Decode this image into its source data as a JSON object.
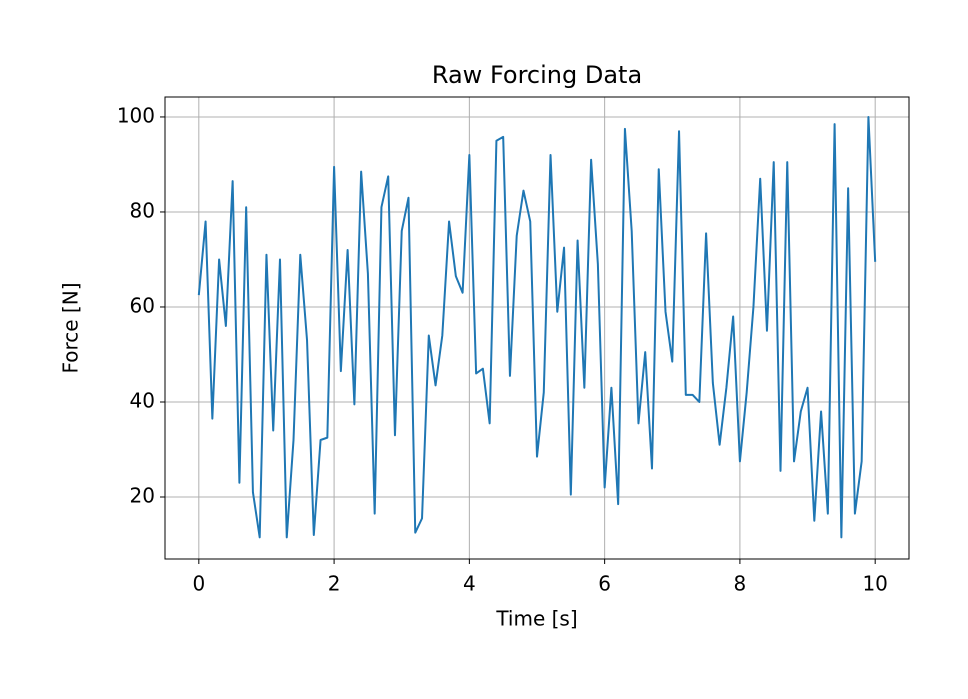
{
  "chart_data": {
    "type": "line",
    "title": "Raw Forcing Data",
    "xlabel": "Time [s]",
    "ylabel": "Force [N]",
    "x": [
      0,
      0.1,
      0.2,
      0.3,
      0.4,
      0.5,
      0.6,
      0.7,
      0.8,
      0.9,
      1,
      1.1,
      1.2,
      1.3,
      1.4,
      1.5,
      1.6,
      1.7,
      1.8,
      1.9,
      2,
      2.1,
      2.2,
      2.3,
      2.4,
      2.5,
      2.6,
      2.7,
      2.8,
      2.9,
      3,
      3.1,
      3.2,
      3.3,
      3.4,
      3.5,
      3.6,
      3.7,
      3.8,
      3.9,
      4,
      4.1,
      4.2,
      4.3,
      4.4,
      4.5,
      4.6,
      4.7,
      4.8,
      4.9,
      5,
      5.1,
      5.2,
      5.3,
      5.4,
      5.5,
      5.6,
      5.7,
      5.8,
      5.9,
      6,
      6.1,
      6.2,
      6.3,
      6.4,
      6.5,
      6.6,
      6.7,
      6.8,
      6.9,
      7,
      7.1,
      7.2,
      7.3,
      7.4,
      7.5,
      7.6,
      7.7,
      7.8,
      7.9,
      8,
      8.1,
      8.2,
      8.3,
      8.4,
      8.5,
      8.6,
      8.7,
      8.8,
      8.9,
      9,
      9.1,
      9.2,
      9.3,
      9.4,
      9.5,
      9.6,
      9.7,
      9.8,
      9.9,
      10
    ],
    "series": [
      {
        "name": "Force",
        "color": "#1f77b4",
        "values": [
          62.5,
          78,
          36.5,
          70,
          56,
          86.5,
          23,
          81,
          21,
          11.5,
          71,
          34,
          70,
          11.5,
          32,
          71,
          53,
          12,
          32,
          32.5,
          89.5,
          46.5,
          72,
          39.5,
          88.5,
          67,
          16.5,
          81,
          87.5,
          33,
          76,
          83,
          12.5,
          15.5,
          54,
          43.5,
          54,
          78,
          66.5,
          63,
          92,
          46,
          47,
          35.5,
          95,
          95.8,
          45.5,
          75,
          84.5,
          78,
          28.5,
          42,
          92,
          59,
          72.5,
          20.5,
          74,
          43,
          91,
          69,
          22,
          43,
          18.5,
          97.5,
          76,
          35.5,
          50.5,
          26,
          89,
          59,
          48.5,
          97,
          41.5,
          41.5,
          40,
          75.5,
          44,
          31,
          43,
          58,
          27.5,
          42,
          60,
          87,
          55,
          90.5,
          25.5,
          90.5,
          27.5,
          38,
          43,
          15,
          38,
          16.5,
          98.5,
          11.5,
          85,
          16.5,
          27.5,
          100,
          69.5
        ]
      }
    ],
    "xlim": [
      -0.5,
      10.5
    ],
    "ylim": [
      6.95,
      104.2
    ],
    "xticks": [
      0,
      2,
      4,
      6,
      8,
      10
    ],
    "yticks": [
      20,
      40,
      60,
      80,
      100
    ],
    "grid": true
  }
}
